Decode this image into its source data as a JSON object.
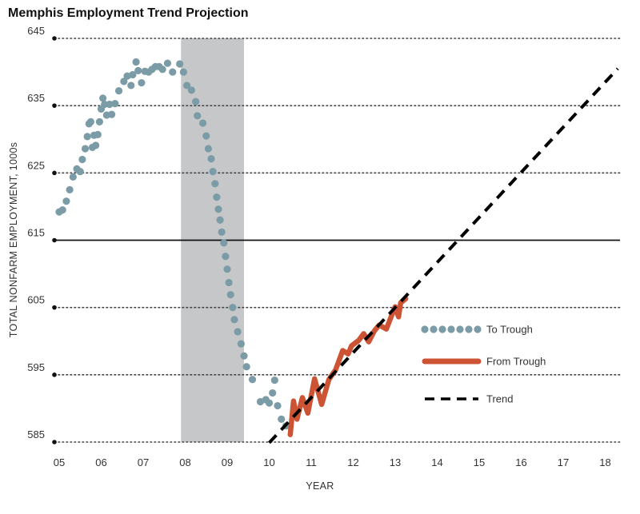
{
  "chart_data": {
    "type": "line",
    "title": "Memphis Employment Trend Projection",
    "xlabel": "YEAR",
    "ylabel": "TOTAL NONFARM EMPLOYMENT, 1000s",
    "x_tick_labels": [
      "05",
      "06",
      "07",
      "08",
      "09",
      "10",
      "11",
      "12",
      "13",
      "14",
      "15",
      "16",
      "17",
      "18"
    ],
    "y_ticks": [
      585,
      595,
      605,
      615,
      625,
      635,
      645
    ],
    "ylim": [
      585,
      645
    ],
    "xlim": [
      2004.9,
      2018.3
    ],
    "grid": "dotted horizontal",
    "reference_line": 615,
    "recession_band": [
      2007.9,
      2009.4
    ],
    "legend_position": "right",
    "colors": {
      "to_trough": "#7B9CA6",
      "from_trough": "#CC5434",
      "trend": "#000000",
      "recession": "#C6C7C9",
      "grid": "#444444"
    },
    "series": [
      {
        "name": "To Trough",
        "style": "dotted",
        "points": [
          [
            2005.0,
            619.2
          ],
          [
            2005.08,
            619.5
          ],
          [
            2005.17,
            620.8
          ],
          [
            2005.25,
            622.5
          ],
          [
            2005.33,
            624.4
          ],
          [
            2005.42,
            625.6
          ],
          [
            2005.5,
            625.2
          ],
          [
            2005.55,
            627.0
          ],
          [
            2005.62,
            628.6
          ],
          [
            2005.67,
            630.4
          ],
          [
            2005.71,
            632.3
          ],
          [
            2005.75,
            632.6
          ],
          [
            2005.79,
            628.8
          ],
          [
            2005.83,
            630.6
          ],
          [
            2005.87,
            629.1
          ],
          [
            2005.92,
            630.7
          ],
          [
            2005.96,
            632.6
          ],
          [
            2006.0,
            634.5
          ],
          [
            2006.04,
            636.1
          ],
          [
            2006.08,
            635.2
          ],
          [
            2006.13,
            633.6
          ],
          [
            2006.2,
            635.2
          ],
          [
            2006.25,
            633.7
          ],
          [
            2006.33,
            635.3
          ],
          [
            2006.42,
            637.2
          ],
          [
            2006.54,
            638.6
          ],
          [
            2006.62,
            639.4
          ],
          [
            2006.71,
            638.0
          ],
          [
            2006.75,
            639.6
          ],
          [
            2006.83,
            641.5
          ],
          [
            2006.88,
            640.2
          ],
          [
            2006.96,
            638.4
          ],
          [
            2007.04,
            640.1
          ],
          [
            2007.13,
            640.0
          ],
          [
            2007.21,
            640.4
          ],
          [
            2007.29,
            640.8
          ],
          [
            2007.38,
            640.8
          ],
          [
            2007.46,
            640.4
          ],
          [
            2007.58,
            641.3
          ],
          [
            2007.7,
            640.0
          ],
          [
            2007.87,
            641.2
          ],
          [
            2007.96,
            640.0
          ],
          [
            2008.04,
            638.0
          ],
          [
            2008.15,
            637.3
          ],
          [
            2008.25,
            635.6
          ],
          [
            2008.29,
            633.5
          ],
          [
            2008.42,
            632.4
          ],
          [
            2008.5,
            630.5
          ],
          [
            2008.55,
            628.6
          ],
          [
            2008.62,
            627.1
          ],
          [
            2008.66,
            625.2
          ],
          [
            2008.71,
            623.4
          ],
          [
            2008.75,
            621.4
          ],
          [
            2008.79,
            619.6
          ],
          [
            2008.83,
            618.0
          ],
          [
            2008.87,
            616.2
          ],
          [
            2008.92,
            614.6
          ],
          [
            2008.96,
            612.6
          ],
          [
            2009.0,
            610.7
          ],
          [
            2009.04,
            608.7
          ],
          [
            2009.08,
            606.9
          ],
          [
            2009.13,
            605.0
          ],
          [
            2009.17,
            603.2
          ],
          [
            2009.25,
            601.4
          ],
          [
            2009.33,
            599.6
          ],
          [
            2009.4,
            597.8
          ],
          [
            2009.46,
            596.2
          ],
          [
            2009.6,
            594.3
          ],
          [
            2009.79,
            591.0
          ],
          [
            2009.92,
            591.3
          ],
          [
            2010.0,
            590.8
          ],
          [
            2010.08,
            592.3
          ],
          [
            2010.13,
            594.2
          ],
          [
            2010.2,
            590.4
          ],
          [
            2010.29,
            588.4
          ],
          [
            2010.4,
            587.4
          ]
        ]
      },
      {
        "name": "From Trough",
        "style": "solid",
        "points": [
          [
            2010.5,
            586.1
          ],
          [
            2010.58,
            591.1
          ],
          [
            2010.66,
            588.4
          ],
          [
            2010.79,
            591.6
          ],
          [
            2010.92,
            589.3
          ],
          [
            2011.08,
            594.4
          ],
          [
            2011.25,
            590.6
          ],
          [
            2011.42,
            594.3
          ],
          [
            2011.58,
            595.7
          ],
          [
            2011.75,
            598.6
          ],
          [
            2011.88,
            598.1
          ],
          [
            2011.96,
            599.3
          ],
          [
            2012.13,
            600.1
          ],
          [
            2012.25,
            601.1
          ],
          [
            2012.37,
            599.9
          ],
          [
            2012.5,
            601.5
          ],
          [
            2012.62,
            602.4
          ],
          [
            2012.79,
            601.8
          ],
          [
            2012.92,
            603.9
          ],
          [
            2013.0,
            605.1
          ],
          [
            2013.08,
            603.6
          ],
          [
            2013.13,
            605.7
          ],
          [
            2013.25,
            606.3
          ]
        ]
      },
      {
        "name": "Trend",
        "style": "dashed",
        "points": [
          [
            2010.0,
            584.9
          ],
          [
            2018.3,
            640.5
          ]
        ]
      }
    ],
    "legend": [
      {
        "label": "To Trough",
        "style": "dotted"
      },
      {
        "label": "From Trough",
        "style": "solid"
      },
      {
        "label": "Trend",
        "style": "dashed"
      }
    ]
  }
}
